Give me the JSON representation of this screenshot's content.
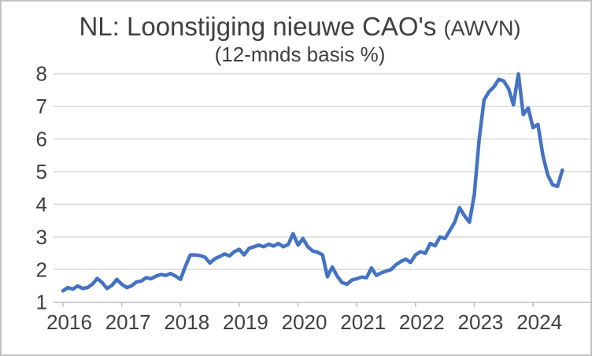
{
  "title": {
    "main": "NL: Loonstijging nieuwe CAO's",
    "awvn": "(AWVN)",
    "subtitle": "(12-mnds basis %)"
  },
  "chart_data": {
    "type": "line",
    "title": "NL: Loonstijging nieuwe CAO's (AWVN)",
    "subtitle": "(12-mnds basis %)",
    "unit": "percent, 12-month basis",
    "x_start": "2016-01",
    "x_end": "2024-07",
    "x_frequency": "monthly",
    "x_tick_labels": [
      "2016",
      "2017",
      "2018",
      "2019",
      "2020",
      "2021",
      "2022",
      "2023",
      "2024"
    ],
    "y_ticks": [
      1,
      2,
      3,
      4,
      5,
      6,
      7,
      8
    ],
    "ylim": [
      1,
      8
    ],
    "grid": "horizontal",
    "legend": "none",
    "colors": {
      "line": "#4472C4",
      "grid": "#D9D9D9",
      "axis": "#BFBFBF",
      "text": "#404040"
    },
    "series": [
      {
        "name": "Loonstijging nieuwe CAO's (AWVN), 12-mnds basis %",
        "monthly_values": [
          1.35,
          1.45,
          1.4,
          1.5,
          1.42,
          1.45,
          1.55,
          1.73,
          1.6,
          1.42,
          1.52,
          1.7,
          1.55,
          1.45,
          1.5,
          1.62,
          1.65,
          1.75,
          1.72,
          1.8,
          1.85,
          1.82,
          1.88,
          1.8,
          1.7,
          2.1,
          2.45,
          2.45,
          2.43,
          2.38,
          2.2,
          2.33,
          2.4,
          2.48,
          2.42,
          2.55,
          2.62,
          2.45,
          2.65,
          2.7,
          2.75,
          2.7,
          2.78,
          2.72,
          2.8,
          2.7,
          2.77,
          3.1,
          2.75,
          2.95,
          2.7,
          2.57,
          2.53,
          2.45,
          1.78,
          2.08,
          1.8,
          1.6,
          1.55,
          1.68,
          1.72,
          1.77,
          1.75,
          2.05,
          1.82,
          1.9,
          1.95,
          2.0,
          2.15,
          2.25,
          2.32,
          2.22,
          2.45,
          2.55,
          2.5,
          2.8,
          2.73,
          3.0,
          2.95,
          3.2,
          3.45,
          3.9,
          3.65,
          3.45,
          4.3,
          6.0,
          7.2,
          7.45,
          7.6,
          7.83,
          7.78,
          7.55,
          7.05,
          8.0,
          6.75,
          6.95,
          6.35,
          6.45,
          5.5,
          4.9,
          4.6,
          4.55,
          5.05
        ]
      }
    ]
  }
}
